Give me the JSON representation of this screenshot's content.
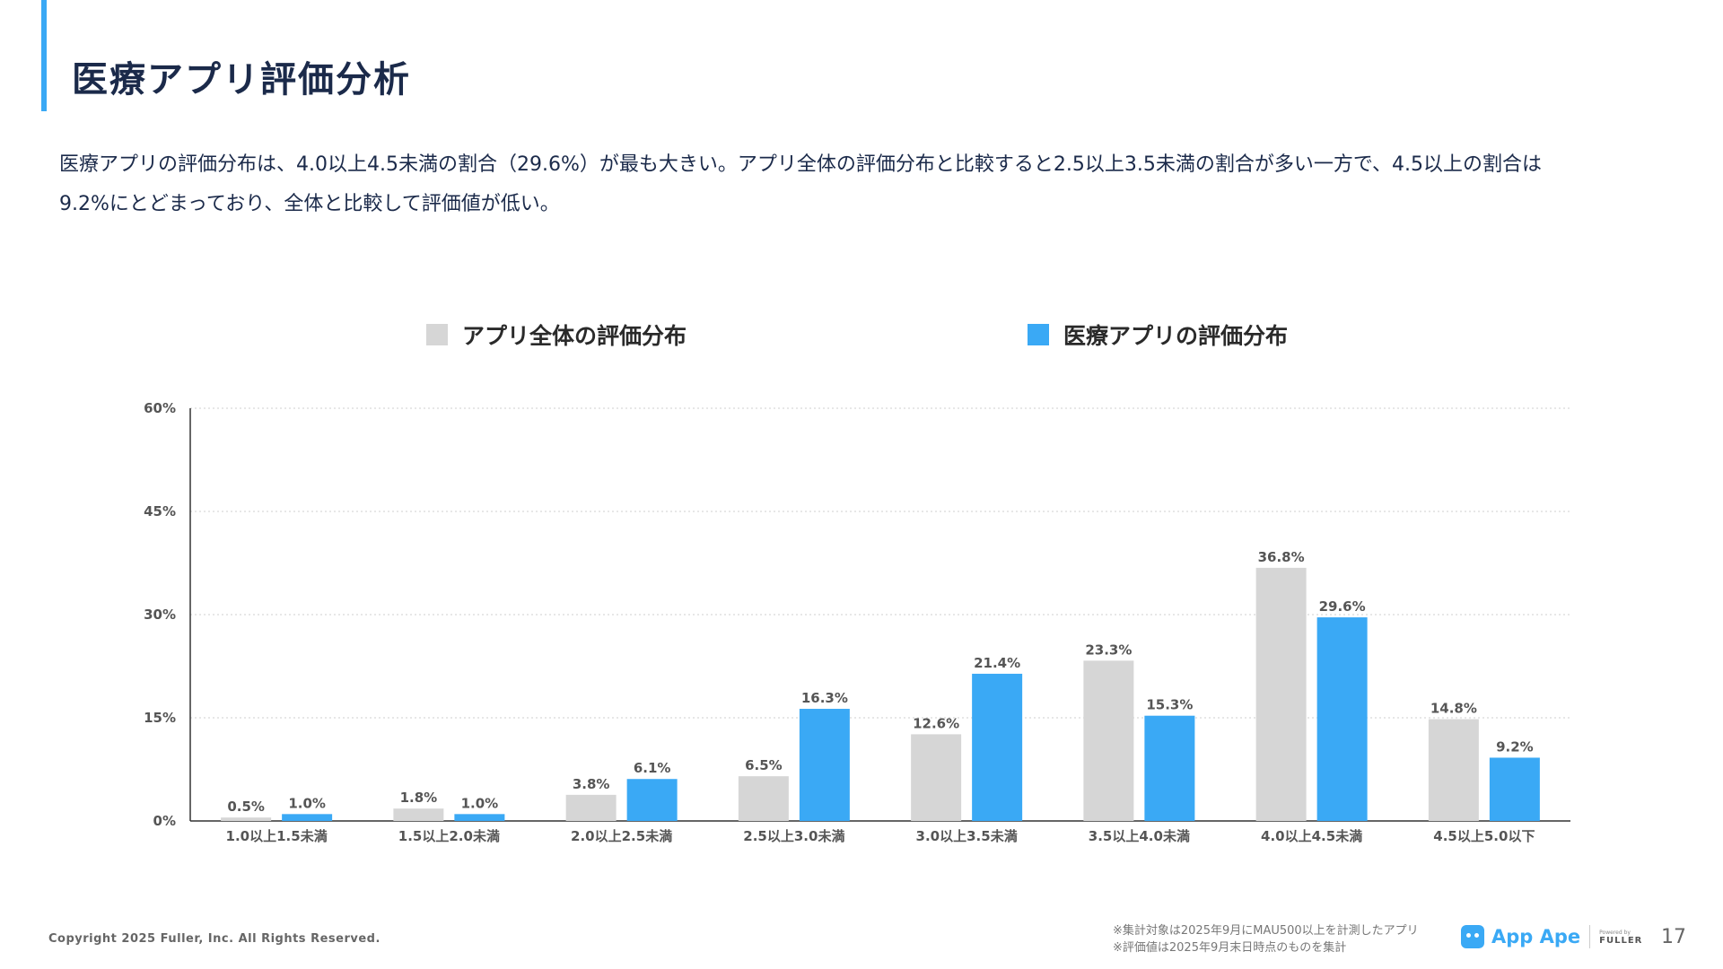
{
  "page": {
    "title": "医療アプリ評価分析",
    "description_line1": "医療アプリの評価分布は、4.0以上4.5未満の割合（29.6%）が最も大きい。アプリ全体の評価分布と比較すると2.5以上3.5未満の割合が多い一方で、4.5以上の割合は",
    "description_line2": "9.2%にとどまっており、全体と比較して評価値が低い。",
    "copyright": "Copyright 2025 Fuller, Inc. All Rights Reserved.",
    "note1": "※集計対象は2025年9月にMAU500以上を計測したアプリ",
    "note2": "※評価値は2025年9月末日時点のものを集計",
    "logo_text": "App Ape",
    "logo_powered_by": "Powered by",
    "logo_company": "FULLER",
    "page_number": "17",
    "accent_color": "#3aa9f5",
    "title_color": "#1b2a4a"
  },
  "chart_data": {
    "type": "bar",
    "categories": [
      "1.0以上1.5未満",
      "1.5以上2.0未満",
      "2.0以上2.5未満",
      "2.5以上3.0未満",
      "3.0以上3.5未満",
      "3.5以上4.0未満",
      "4.0以上4.5未満",
      "4.5以上5.0以下"
    ],
    "series": [
      {
        "name": "アプリ全体の評価分布",
        "color": "#d6d6d6",
        "values": [
          0.5,
          1.8,
          3.8,
          6.5,
          12.6,
          23.3,
          36.8,
          14.8
        ],
        "labels": [
          "0.5%",
          "1.8%",
          "3.8%",
          "6.5%",
          "12.6%",
          "23.3%",
          "36.8%",
          "14.8%"
        ]
      },
      {
        "name": "医療アプリの評価分布",
        "color": "#3aa9f5",
        "values": [
          1.0,
          1.0,
          6.1,
          16.3,
          21.4,
          15.3,
          29.6,
          9.2
        ],
        "labels": [
          "1.0%",
          "1.0%",
          "6.1%",
          "16.3%",
          "21.4%",
          "15.3%",
          "29.6%",
          "9.2%"
        ]
      }
    ],
    "ylim": [
      0,
      60
    ],
    "yticks": [
      0,
      15,
      30,
      45,
      60
    ],
    "ytick_labels": [
      "0%",
      "15%",
      "30%",
      "45%",
      "60%"
    ],
    "grid": true,
    "legend_position": "top"
  }
}
